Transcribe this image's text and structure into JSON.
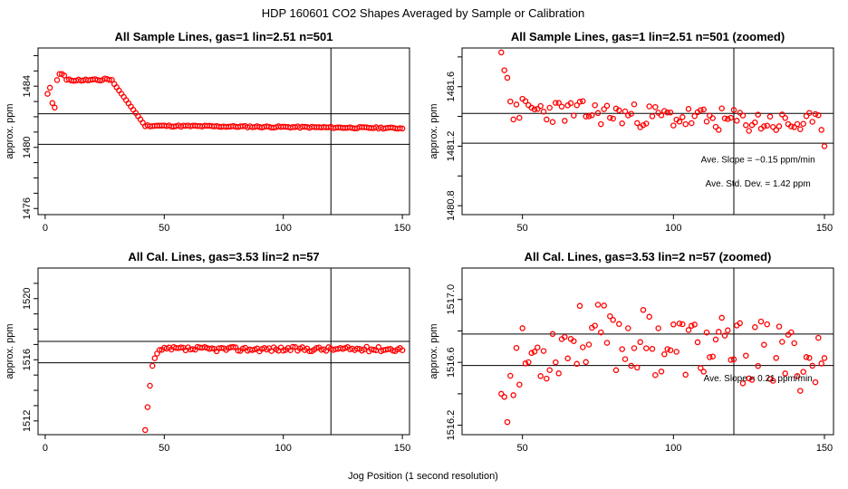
{
  "figure": {
    "title": "HDP  160601  CO2 Shapes Averaged by Sample or Calibration",
    "xlabel": "Jog Position (1 second resolution)"
  },
  "chart_data": [
    {
      "type": "scatter",
      "title": "All Sample Lines, gas=1 lin=2.51 n=501",
      "xlabel": "",
      "ylabel": "approx. ppm",
      "xlim": [
        -3,
        153
      ],
      "ylim": [
        1475.6,
        1486.5
      ],
      "xticks": [
        0,
        50,
        100,
        150
      ],
      "yticks": [
        1476,
        1477,
        1478,
        1479,
        1480,
        1481,
        1482,
        1483,
        1484,
        1485,
        1486
      ],
      "ytick_labels": [
        "1476",
        "",
        "",
        "",
        "1480",
        "",
        "",
        "",
        "1484",
        "",
        ""
      ],
      "hlines": [
        1482.2,
        1480.2
      ],
      "vlines": [
        120
      ],
      "marker_color": "#ff0000",
      "gen": {
        "kind": "sample_full",
        "x_start": 1,
        "x_end": 150
      },
      "annotations": []
    },
    {
      "type": "scatter",
      "title": "All Sample Lines, gas=1 lin=2.51 n=501 (zoomed)",
      "xlabel": "",
      "ylabel": "approx. ppm",
      "xlim": [
        30,
        153
      ],
      "ylim": [
        1480.74,
        1481.86
      ],
      "xticks": [
        50,
        100,
        150
      ],
      "yticks": [
        1480.8,
        1481.0,
        1481.2,
        1481.4,
        1481.6,
        1481.8
      ],
      "ytick_labels": [
        "1480.8",
        "",
        "1481.2",
        "",
        "1481.6",
        ""
      ],
      "hlines": [
        1481.42,
        1481.22
      ],
      "vlines": [
        120
      ],
      "marker_color": "#ff0000",
      "gen": {
        "kind": "sample_zoom",
        "x_start": 43,
        "x_end": 150
      },
      "annotations": [
        {
          "text": "Ave. Slope =  −0.15  ppm/min",
          "x": 128,
          "y": 1481.09
        },
        {
          "text": "Ave. Std. Dev. =  1.42  ppm",
          "x": 128,
          "y": 1480.93
        }
      ]
    },
    {
      "type": "scatter",
      "title": "All Cal. Lines, gas=3.53 lin=2 n=57",
      "xlabel": "",
      "ylabel": "approx. ppm",
      "xlim": [
        -3,
        153
      ],
      "ylim": [
        1511.1,
        1522.0
      ],
      "xticks": [
        0,
        50,
        100,
        150
      ],
      "yticks": [
        1512,
        1513,
        1514,
        1515,
        1516,
        1517,
        1518,
        1519,
        1520,
        1521
      ],
      "ytick_labels": [
        "1512",
        "",
        "",
        "",
        "1516",
        "",
        "",
        "",
        "1520",
        ""
      ],
      "hlines": [
        1517.2,
        1515.8
      ],
      "vlines": [
        120
      ],
      "marker_color": "#ff0000",
      "gen": {
        "kind": "cal_full",
        "x_start": 42,
        "x_end": 150
      },
      "annotations": []
    },
    {
      "type": "scatter",
      "title": "All Cal. Lines, gas=3.53 lin=2 n=57 (zoomed)",
      "xlabel": "",
      "ylabel": "approx. ppm",
      "xlim": [
        30,
        153
      ],
      "ylim": [
        1516.14,
        1517.2
      ],
      "xticks": [
        50,
        100,
        150
      ],
      "yticks": [
        1516.2,
        1516.4,
        1516.6,
        1516.8,
        1517.0
      ],
      "ytick_labels": [
        "1516.2",
        "",
        "1516.6",
        "",
        "1517.0"
      ],
      "hlines": [
        1516.78,
        1516.58
      ],
      "vlines": [
        120
      ],
      "marker_color": "#ff0000",
      "gen": {
        "kind": "cal_zoom",
        "x_start": 43,
        "x_end": 150
      },
      "annotations": [
        {
          "text": "Ave. Slope =  0.21  ppm/min",
          "x": 128,
          "y": 1516.48
        }
      ]
    }
  ]
}
